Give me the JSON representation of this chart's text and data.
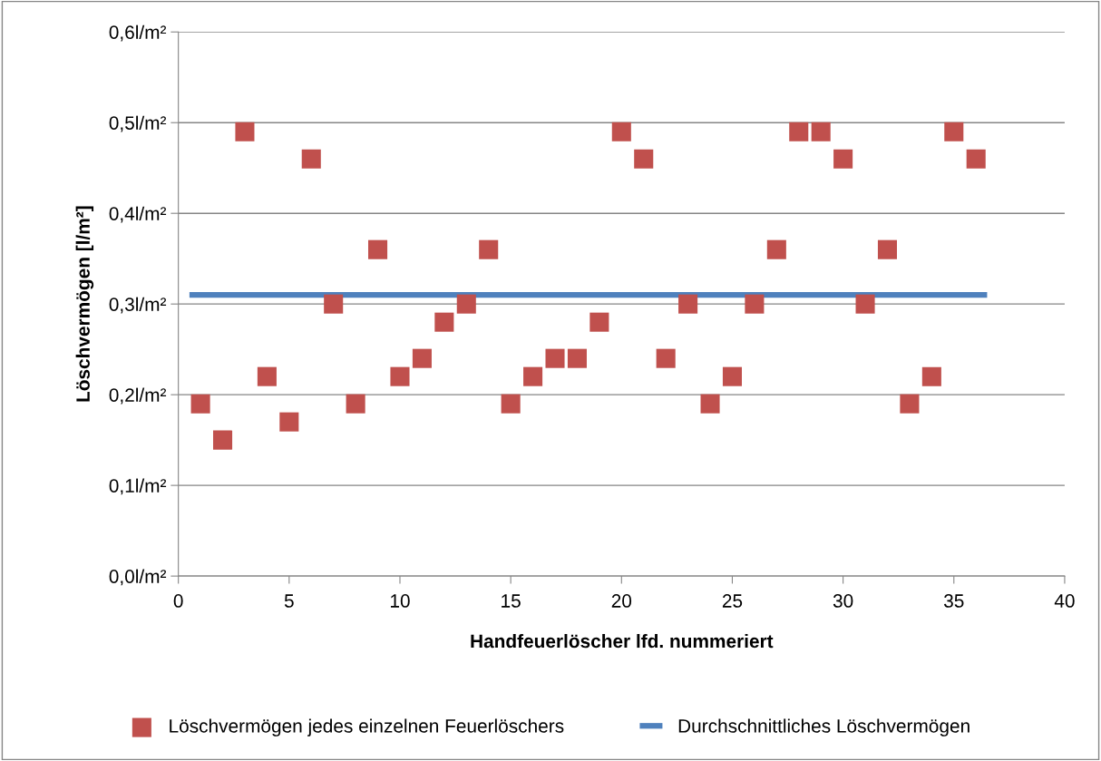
{
  "chart_data": {
    "type": "scatter",
    "xlabel": "Handfeuerlöscher lfd. nummeriert",
    "ylabel": "Löschvermögen [l/m²]",
    "xlim": [
      0,
      40
    ],
    "xticks": [
      0,
      5,
      10,
      15,
      20,
      25,
      30,
      35,
      40
    ],
    "ylim": [
      0,
      0.6
    ],
    "yticks": [
      {
        "value": 0,
        "label": "0,0l/m²"
      },
      {
        "value": 0.1,
        "label": "0,1l/m²"
      },
      {
        "value": 0.2,
        "label": "0,2l/m²"
      },
      {
        "value": 0.3,
        "label": "0,3l/m²"
      },
      {
        "value": 0.4,
        "label": "0,4l/m²"
      },
      {
        "value": 0.5,
        "label": "0,5l/m²"
      },
      {
        "value": 0.6,
        "label": "0,6l/m²"
      }
    ],
    "grid": "y",
    "legend": "bottom",
    "series": [
      {
        "name": "Löschvermögen jedes einzelnen Feuerlöschers",
        "marker": "square",
        "color": "#c0504d",
        "x": [
          1,
          2,
          3,
          4,
          5,
          6,
          7,
          8,
          9,
          10,
          11,
          12,
          13,
          14,
          15,
          16,
          17,
          18,
          19,
          20,
          21,
          22,
          23,
          24,
          25,
          26,
          27,
          28,
          29,
          30,
          31,
          32,
          33,
          34,
          35,
          36
        ],
        "values": [
          0.19,
          0.15,
          0.49,
          0.22,
          0.17,
          0.46,
          0.3,
          0.19,
          0.36,
          0.22,
          0.24,
          0.28,
          0.3,
          0.36,
          0.19,
          0.22,
          0.24,
          0.24,
          0.28,
          0.49,
          0.46,
          0.24,
          0.3,
          0.19,
          0.22,
          0.3,
          0.36,
          0.49,
          0.49,
          0.46,
          0.3,
          0.36,
          0.19,
          0.22,
          0.49,
          0.46
        ]
      },
      {
        "name": "Durchschnittliches Löschvermögen",
        "type": "line",
        "marker": "none",
        "line_style": "solid",
        "color": "#4f81bd",
        "x": [
          0.5,
          36.5
        ],
        "values": [
          0.31,
          0.31
        ]
      }
    ]
  }
}
